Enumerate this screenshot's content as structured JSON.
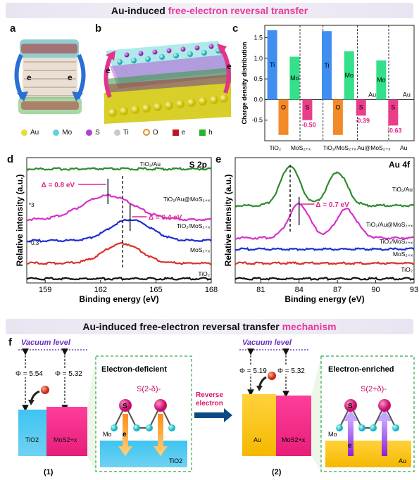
{
  "header": {
    "title_plain": "Au-induced ",
    "title_highlight": "free-electron reversal transfer"
  },
  "mechanism_header": {
    "title_plain": "Au-induced free-electron reversal transfer ",
    "title_highlight": "mechanism"
  },
  "panel_labels": {
    "a": "a",
    "b": "b",
    "c": "c",
    "d": "d",
    "e": "e",
    "f": "f"
  },
  "legend": [
    {
      "label": "Au",
      "color": "#e4dd3c",
      "shape": "circle"
    },
    {
      "label": "Mo",
      "color": "#5fd4d6",
      "shape": "circle"
    },
    {
      "label": "S",
      "color": "#b43fd0",
      "shape": "circle"
    },
    {
      "label": "Ti",
      "color": "#c9c9c9",
      "shape": "circle"
    },
    {
      "label": "O",
      "color": "#e58a2f",
      "shape": "ring"
    },
    {
      "label": "e",
      "color": "#c0171d",
      "shape": "square"
    },
    {
      "label": "h",
      "color": "#25b62a",
      "shape": "square"
    }
  ],
  "structure_labels": {
    "e_left": "e",
    "e_right": "e",
    "b_e_left": "e",
    "b_e_right": "e"
  },
  "chart_data": [
    {
      "id": "c",
      "type": "bar",
      "ylabel": "Charge density distribution",
      "ylim": [
        -1.0,
        1.8
      ],
      "yticks": [
        "1.5",
        "1.0",
        "0.5",
        "0.0",
        "-0.5"
      ],
      "groups": [
        "TiO2",
        "MoS2+x",
        "TiO2/MoS2+x",
        "Au@MoS2+x",
        "Au"
      ],
      "series": [
        {
          "label": "Ti",
          "value": 1.68,
          "color": "#3f8ef0"
        },
        {
          "label": "O",
          "value": -0.86,
          "color": "#f38a2a"
        },
        {
          "label": "Mo",
          "value": 1.04,
          "color": "#34e08a"
        },
        {
          "label": "S",
          "value": -0.5,
          "color": "#ea3d8a",
          "value_label": "-0.50"
        },
        {
          "label": "Ti",
          "value": 1.66,
          "color": "#3f8ef0"
        },
        {
          "label": "O",
          "value": -0.86,
          "color": "#f38a2a"
        },
        {
          "label": "Mo",
          "value": 1.17,
          "color": "#34e08a"
        },
        {
          "label": "S",
          "value": -0.39,
          "color": "#ea3d8a",
          "value_label": "-0.39"
        },
        {
          "label": "Au",
          "value": 0.0,
          "color": "#e8d94b"
        },
        {
          "label": "Mo",
          "value": 0.95,
          "color": "#34e08a"
        },
        {
          "label": "S",
          "value": -0.63,
          "color": "#ea3d8a",
          "value_label": "-0.63"
        },
        {
          "label": "Au",
          "value": 0.0,
          "color": "#e8d94b"
        }
      ]
    },
    {
      "id": "d",
      "type": "line",
      "title": "S 2p",
      "xlabel": "Binding energy (eV)",
      "ylabel": "Relative intensity (a.u.)",
      "xlim": [
        158,
        168
      ],
      "xticks": [
        "159",
        "162",
        "165",
        "168"
      ],
      "x_reversed": false,
      "series": [
        {
          "name": "TiO2/Au",
          "color": "#2e8b2e",
          "center": null
        },
        {
          "name": "TiO2/Au@MoS2+x",
          "color": "#d432c9",
          "center": 162.4,
          "multiplier": "*3"
        },
        {
          "name": "TiO2/MoS2+x",
          "color": "#1e2fd0",
          "center": 163.6
        },
        {
          "name": "MoS2+x",
          "color": "#d9322a",
          "center": 163.2,
          "multiplier": "*0.3"
        },
        {
          "name": "TiO2",
          "color": "#111111",
          "center": null
        }
      ],
      "annotations": [
        "Δ = 0.8 eV",
        "Δ = 0.4 eV"
      ]
    },
    {
      "id": "e",
      "type": "line",
      "title": "Au 4f",
      "xlabel": "Binding energy (eV)",
      "ylabel": "Relative intensity (a.u.)",
      "xlim": [
        79,
        93
      ],
      "xticks": [
        "81",
        "84",
        "87",
        "90",
        "93"
      ],
      "series": [
        {
          "name": "TiO2/Au",
          "color": "#2e8b2e",
          "peaks": [
            83.3,
            87.0
          ]
        },
        {
          "name": "TiO2/Au@MoS2+x",
          "color": "#d432c9",
          "peaks": [
            84.0,
            87.7
          ]
        },
        {
          "name": "TiO2/MoS2+x",
          "color": "#1e2fd0",
          "peaks": []
        },
        {
          "name": "MoS2+x",
          "color": "#d9322a",
          "peaks": []
        },
        {
          "name": "TiO2",
          "color": "#111111",
          "peaks": []
        }
      ],
      "annotations": [
        "Δ = 0.7 eV"
      ]
    }
  ],
  "mechanism": {
    "left": {
      "vacuum": "Vacuum level",
      "phi1": "Φ = 5.54",
      "phi2": "Φ = 5.32",
      "block1": "TiO2",
      "block2": "MoS2+x",
      "box_title": "Electron-deficient",
      "sulfur": "S(2-δ)-",
      "mo": "Mo",
      "s": "S",
      "e": "e",
      "base": "TiO2",
      "num": "(1)"
    },
    "arrow": {
      "line1": "Reverse",
      "line2": "electron"
    },
    "right": {
      "vacuum": "Vacuum level",
      "phi1": "Φ = 5.19",
      "phi2": "Φ = 5.32",
      "block1": "Au",
      "block2": "MoS2+x",
      "box_title": "Electron-enriched",
      "sulfur": "S(2+δ)-",
      "mo": "Mo",
      "s": "S",
      "e": "e",
      "base": "Au",
      "num": "(2)"
    }
  }
}
